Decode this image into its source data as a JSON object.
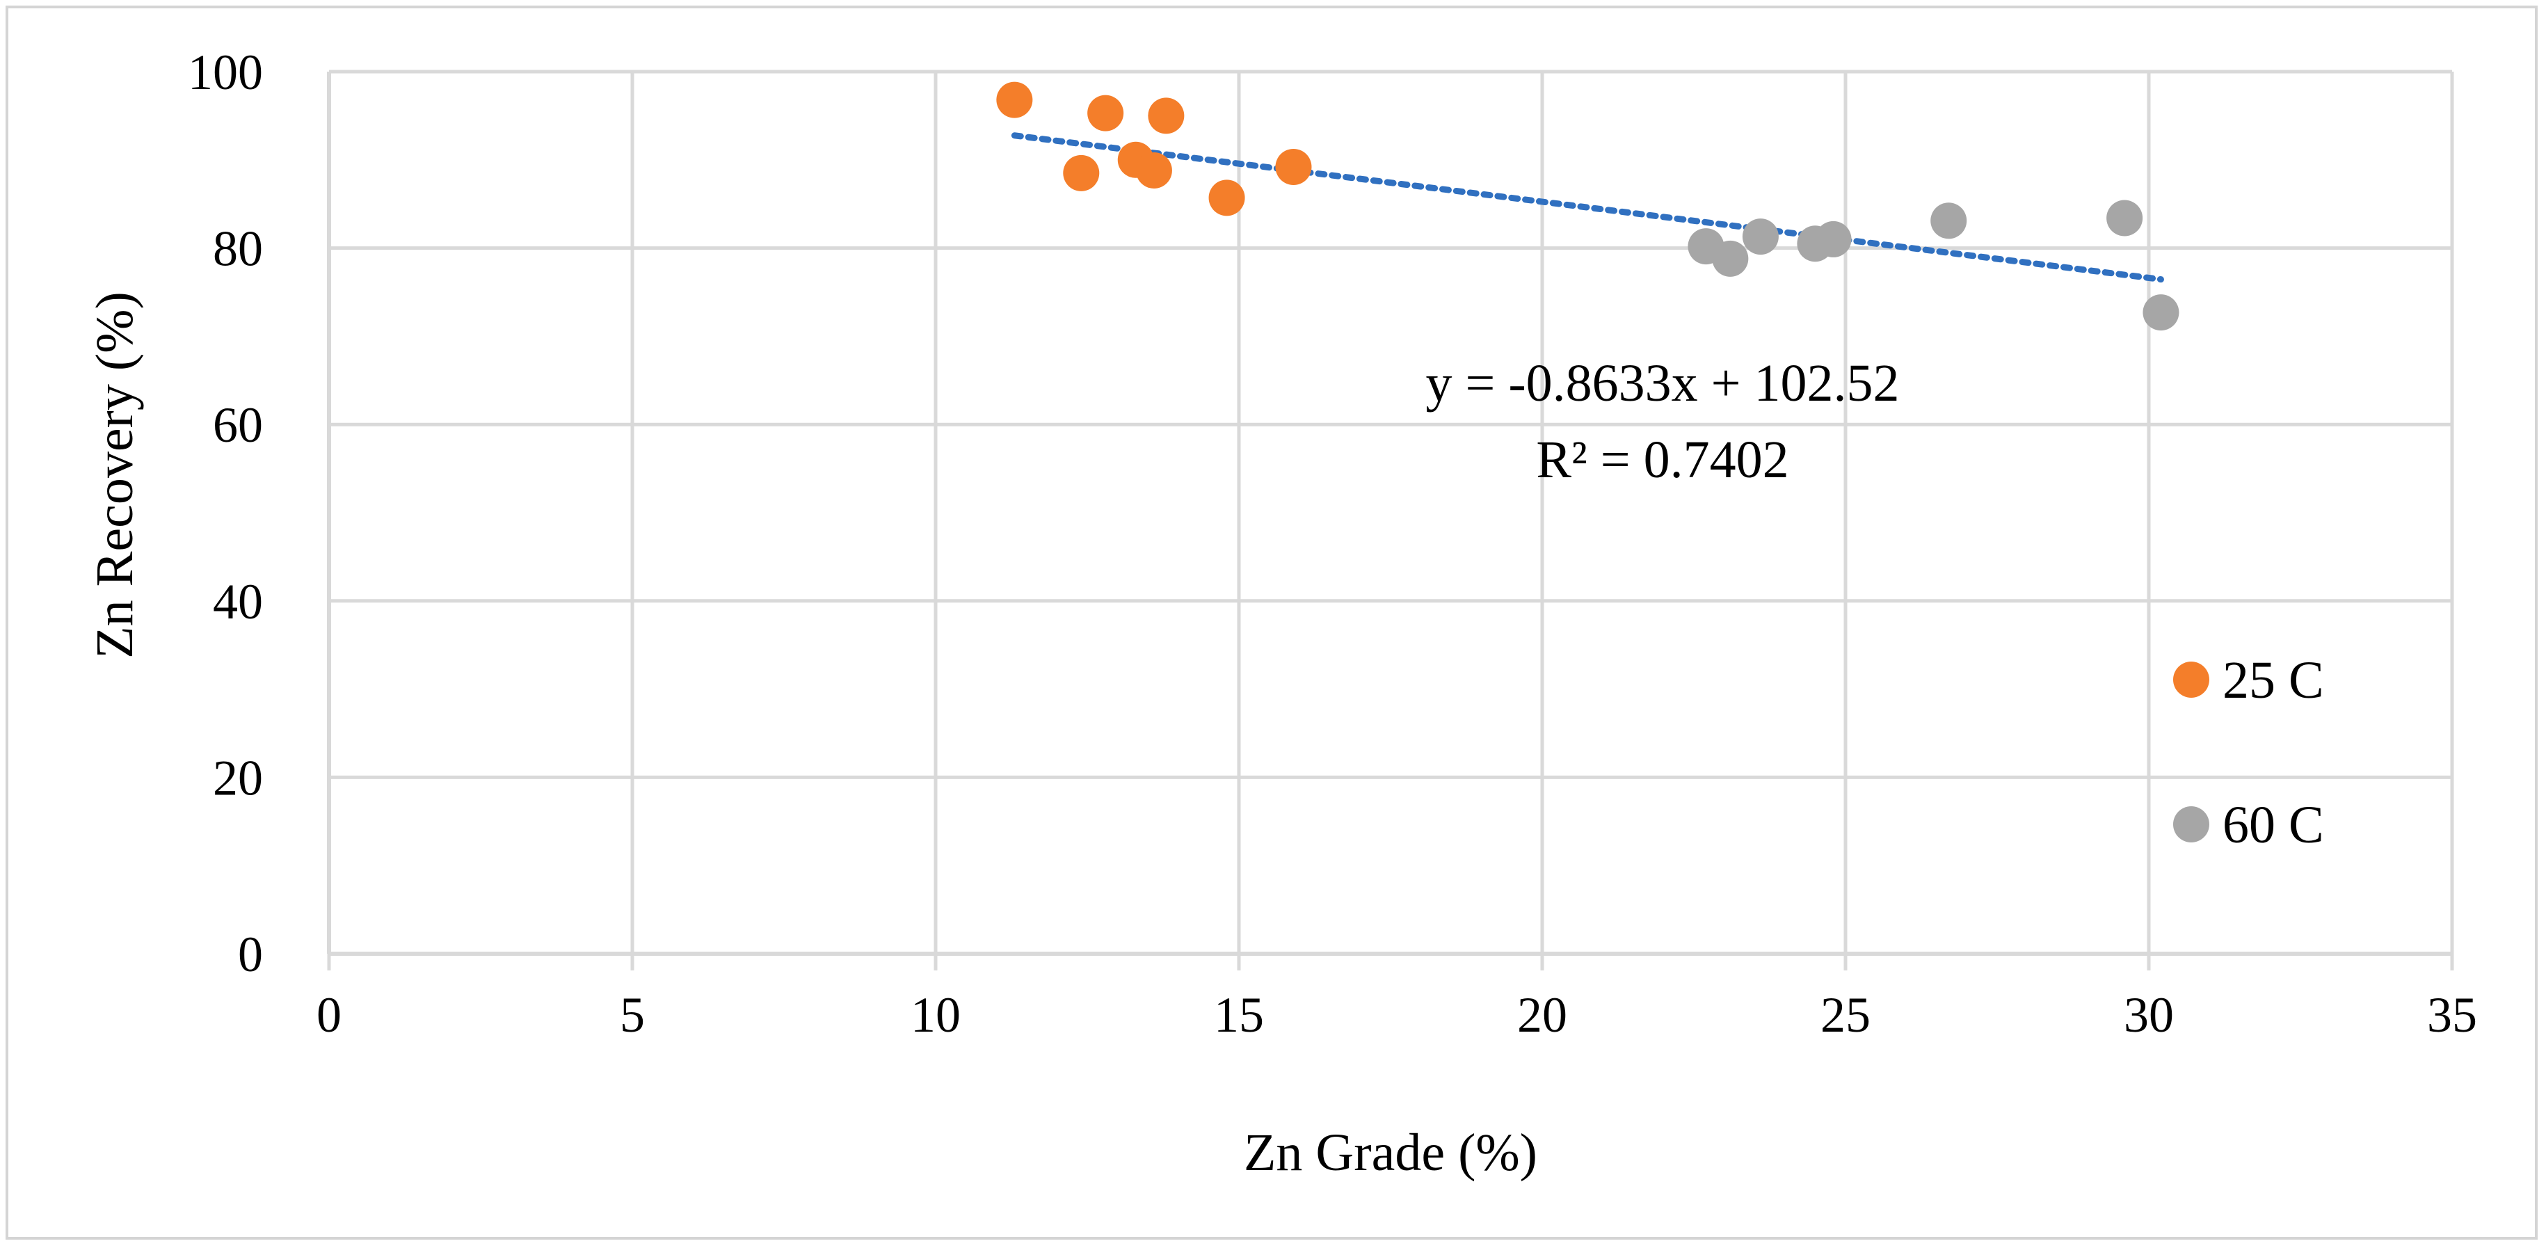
{
  "chart_data": {
    "type": "scatter",
    "title": "",
    "xlabel": "Zn Grade (%)",
    "ylabel": "Zn Recovery (%)",
    "xlim": [
      0,
      35
    ],
    "ylim": [
      0,
      100
    ],
    "xticks": [
      0,
      5,
      10,
      15,
      20,
      25,
      30,
      35
    ],
    "yticks": [
      0,
      20,
      40,
      60,
      80,
      100
    ],
    "grid": true,
    "legend_position": "right",
    "series": [
      {
        "name": "25 C",
        "color": "#f47e2a",
        "points": [
          {
            "x": 11.3,
            "y": 96.8
          },
          {
            "x": 12.4,
            "y": 88.5
          },
          {
            "x": 12.8,
            "y": 95.3
          },
          {
            "x": 13.3,
            "y": 90.0
          },
          {
            "x": 13.6,
            "y": 88.8
          },
          {
            "x": 13.8,
            "y": 95.0
          },
          {
            "x": 14.8,
            "y": 85.7
          },
          {
            "x": 15.9,
            "y": 89.2
          }
        ]
      },
      {
        "name": "60 C",
        "color": "#a6a6a6",
        "points": [
          {
            "x": 22.7,
            "y": 80.2
          },
          {
            "x": 23.1,
            "y": 78.8
          },
          {
            "x": 23.6,
            "y": 81.3
          },
          {
            "x": 24.5,
            "y": 80.5
          },
          {
            "x": 24.8,
            "y": 81.0
          },
          {
            "x": 26.7,
            "y": 83.1
          },
          {
            "x": 29.6,
            "y": 83.4
          },
          {
            "x": 30.2,
            "y": 72.7
          }
        ]
      }
    ],
    "trendline": {
      "type": "linear",
      "color": "#3070c0",
      "slope": -0.8633,
      "intercept": 102.52,
      "x_range": [
        11.3,
        30.2
      ],
      "equation_label": "y = -0.8633x + 102.52",
      "r2_label": "R² = 0.7402"
    }
  }
}
